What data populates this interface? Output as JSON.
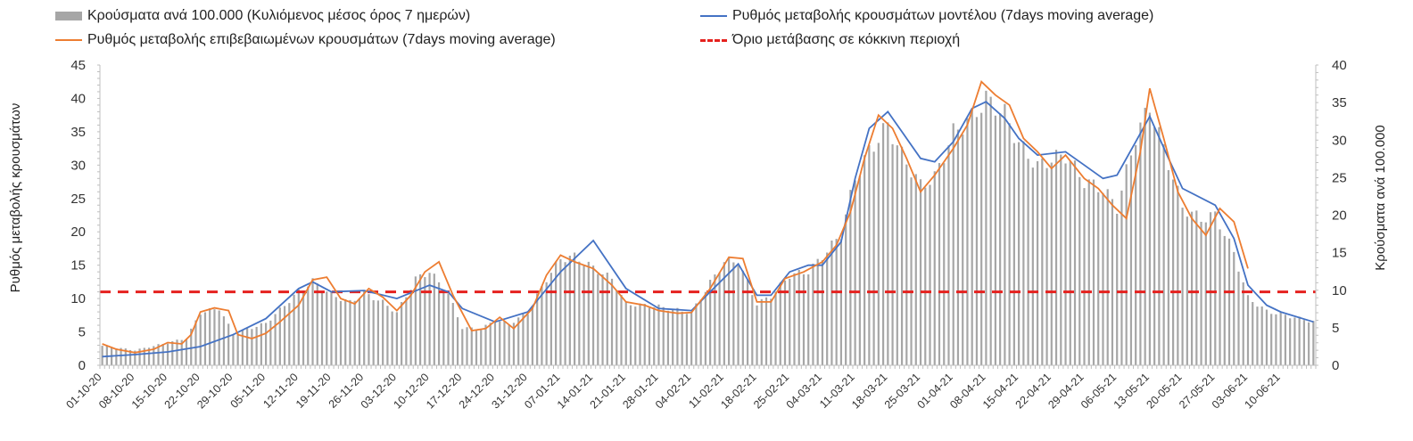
{
  "chart_data": {
    "type": "bar+line",
    "title": "",
    "ylabel_left": "Ρυθμός μεταβολής κρουσμάτων",
    "ylabel_right": "Κρούσματα ανά 100.000",
    "ylim_left": [
      0,
      45
    ],
    "ylim_right": [
      0,
      40
    ],
    "yticks_left": [
      0,
      5,
      10,
      15,
      20,
      25,
      30,
      35,
      40,
      45
    ],
    "yticks_right": [
      0,
      5,
      10,
      15,
      20,
      25,
      30,
      35,
      40
    ],
    "x_start": "2020-10-01",
    "x_end": "2021-06-17",
    "x_tick_labels": [
      "01-10-20",
      "08-10-20",
      "15-10-20",
      "22-10-20",
      "29-10-20",
      "05-11-20",
      "12-11-20",
      "19-11-20",
      "26-11-20",
      "03-12-20",
      "10-12-20",
      "17-12-20",
      "24-12-20",
      "31-12-20",
      "07-01-21",
      "14-01-21",
      "21-01-21",
      "28-01-21",
      "04-02-21",
      "11-02-21",
      "18-02-21",
      "25-02-21",
      "04-03-21",
      "11-03-21",
      "18-03-21",
      "25-03-21",
      "01-04-21",
      "08-04-21",
      "15-04-21",
      "22-04-21",
      "29-04-21",
      "06-05-21",
      "13-05-21",
      "20-05-21",
      "27-05-21",
      "03-06-21",
      "10-06-21"
    ],
    "threshold": 11,
    "series": [
      {
        "name": "Κρούσματα ανά 100.000 (Κυλιόμενος μέσος όρος 7 ημερών)",
        "kind": "bar",
        "axis": "right",
        "color": "#a6a6a6",
        "points": [
          [
            "2020-10-01",
            2.6
          ],
          [
            "2020-10-08",
            2.0
          ],
          [
            "2020-10-15",
            3.0
          ],
          [
            "2020-10-19",
            3.6
          ],
          [
            "2020-10-22",
            7.0
          ],
          [
            "2020-10-26",
            7.6
          ],
          [
            "2020-10-29",
            4.2
          ],
          [
            "2020-11-05",
            5.6
          ],
          [
            "2020-11-12",
            9.8
          ],
          [
            "2020-11-15",
            11.2
          ],
          [
            "2020-11-19",
            9.4
          ],
          [
            "2020-11-23",
            8.4
          ],
          [
            "2020-11-26",
            9.6
          ],
          [
            "2020-11-30",
            8.4
          ],
          [
            "2020-12-03",
            7.0
          ],
          [
            "2020-12-07",
            11.5
          ],
          [
            "2020-12-10",
            12.5
          ],
          [
            "2020-12-14",
            9.5
          ],
          [
            "2020-12-17",
            5.0
          ],
          [
            "2020-12-21",
            4.8
          ],
          [
            "2020-12-24",
            6.0
          ],
          [
            "2020-12-27",
            5.5
          ],
          [
            "2020-12-31",
            7.0
          ],
          [
            "2021-01-04",
            11.5
          ],
          [
            "2021-01-07",
            14.2
          ],
          [
            "2021-01-10",
            14.5
          ],
          [
            "2021-01-14",
            13.0
          ],
          [
            "2021-01-18",
            11.5
          ],
          [
            "2021-01-21",
            8.2
          ],
          [
            "2021-01-28",
            7.8
          ],
          [
            "2021-02-04",
            7.0
          ],
          [
            "2021-02-08",
            11.0
          ],
          [
            "2021-02-11",
            13.8
          ],
          [
            "2021-02-14",
            13.8
          ],
          [
            "2021-02-18",
            8.2
          ],
          [
            "2021-02-21",
            9.2
          ],
          [
            "2021-02-25",
            12.0
          ],
          [
            "2021-03-01",
            12.5
          ],
          [
            "2021-03-04",
            14.5
          ],
          [
            "2021-03-08",
            17.5
          ],
          [
            "2021-03-11",
            25.0
          ],
          [
            "2021-03-14",
            28.5
          ],
          [
            "2021-03-18",
            32.0
          ],
          [
            "2021-03-21",
            28.0
          ],
          [
            "2021-03-25",
            24.0
          ],
          [
            "2021-03-28",
            25.0
          ],
          [
            "2021-04-01",
            31.0
          ],
          [
            "2021-04-05",
            33.0
          ],
          [
            "2021-04-08",
            35.5
          ],
          [
            "2021-04-12",
            33.5
          ],
          [
            "2021-04-15",
            29.5
          ],
          [
            "2021-04-19",
            26.5
          ],
          [
            "2021-04-22",
            27.5
          ],
          [
            "2021-04-25",
            28.0
          ],
          [
            "2021-04-29",
            24.5
          ],
          [
            "2021-05-03",
            23.5
          ],
          [
            "2021-05-06",
            21.0
          ],
          [
            "2021-05-10",
            30.5
          ],
          [
            "2021-05-13",
            34.5
          ],
          [
            "2021-05-17",
            27.0
          ],
          [
            "2021-05-20",
            21.0
          ],
          [
            "2021-05-24",
            19.5
          ],
          [
            "2021-05-27",
            20.0
          ],
          [
            "2021-05-31",
            15.0
          ],
          [
            "2021-06-03",
            9.0
          ],
          [
            "2021-06-07",
            7.2
          ],
          [
            "2021-06-10",
            6.8
          ],
          [
            "2021-06-17",
            5.8
          ]
        ]
      },
      {
        "name": "Ρυθμός μεταβολής κρουσμάτων μοντέλου (7days moving average)",
        "kind": "line",
        "axis": "left",
        "color": "#4472c4",
        "points": [
          [
            "2020-10-01",
            1.3
          ],
          [
            "2020-10-08",
            1.6
          ],
          [
            "2020-10-15",
            2.0
          ],
          [
            "2020-10-22",
            2.8
          ],
          [
            "2020-10-29",
            4.6
          ],
          [
            "2020-11-05",
            7.0
          ],
          [
            "2020-11-12",
            11.5
          ],
          [
            "2020-11-15",
            12.5
          ],
          [
            "2020-11-19",
            11.0
          ],
          [
            "2020-11-26",
            11.2
          ],
          [
            "2020-12-03",
            10.0
          ],
          [
            "2020-12-10",
            12.0
          ],
          [
            "2020-12-14",
            11.0
          ],
          [
            "2020-12-17",
            8.5
          ],
          [
            "2020-12-24",
            6.5
          ],
          [
            "2020-12-31",
            8.0
          ],
          [
            "2021-01-07",
            14.0
          ],
          [
            "2021-01-14",
            18.7
          ],
          [
            "2021-01-21",
            11.5
          ],
          [
            "2021-01-28",
            8.5
          ],
          [
            "2021-02-04",
            8.2
          ],
          [
            "2021-02-08",
            11.0
          ],
          [
            "2021-02-14",
            15.2
          ],
          [
            "2021-02-18",
            10.5
          ],
          [
            "2021-02-21",
            10.5
          ],
          [
            "2021-02-25",
            14.0
          ],
          [
            "2021-03-01",
            15.0
          ],
          [
            "2021-03-04",
            15.0
          ],
          [
            "2021-03-08",
            18.5
          ],
          [
            "2021-03-11",
            28.0
          ],
          [
            "2021-03-14",
            35.5
          ],
          [
            "2021-03-18",
            38.0
          ],
          [
            "2021-03-21",
            35.0
          ],
          [
            "2021-03-25",
            31.0
          ],
          [
            "2021-03-28",
            30.5
          ],
          [
            "2021-04-01",
            33.5
          ],
          [
            "2021-04-05",
            38.5
          ],
          [
            "2021-04-08",
            39.5
          ],
          [
            "2021-04-12",
            37.0
          ],
          [
            "2021-04-15",
            34.0
          ],
          [
            "2021-04-19",
            31.5
          ],
          [
            "2021-04-25",
            32.0
          ],
          [
            "2021-04-29",
            30.0
          ],
          [
            "2021-05-03",
            28.0
          ],
          [
            "2021-05-06",
            28.5
          ],
          [
            "2021-05-10",
            33.5
          ],
          [
            "2021-05-13",
            37.3
          ],
          [
            "2021-05-17",
            31.0
          ],
          [
            "2021-05-20",
            26.5
          ],
          [
            "2021-05-27",
            24.0
          ],
          [
            "2021-05-31",
            19.0
          ],
          [
            "2021-06-03",
            12.0
          ],
          [
            "2021-06-07",
            9.0
          ],
          [
            "2021-06-10",
            8.0
          ],
          [
            "2021-06-17",
            6.5
          ]
        ]
      },
      {
        "name": "Ρυθμός μεταβολής επιβεβαιωμένων κρουσμάτων (7days moving average)",
        "kind": "line",
        "axis": "left",
        "color": "#ed7d31",
        "points": [
          [
            "2020-10-01",
            3.2
          ],
          [
            "2020-10-04",
            2.4
          ],
          [
            "2020-10-08",
            1.9
          ],
          [
            "2020-10-12",
            2.4
          ],
          [
            "2020-10-15",
            3.4
          ],
          [
            "2020-10-18",
            3.2
          ],
          [
            "2020-10-20",
            4.6
          ],
          [
            "2020-10-22",
            8.0
          ],
          [
            "2020-10-25",
            8.6
          ],
          [
            "2020-10-28",
            8.2
          ],
          [
            "2020-10-30",
            4.6
          ],
          [
            "2020-11-02",
            4.0
          ],
          [
            "2020-11-05",
            4.8
          ],
          [
            "2020-11-08",
            6.5
          ],
          [
            "2020-11-12",
            9.0
          ],
          [
            "2020-11-15",
            12.8
          ],
          [
            "2020-11-18",
            13.2
          ],
          [
            "2020-11-21",
            10.0
          ],
          [
            "2020-11-24",
            9.2
          ],
          [
            "2020-11-27",
            11.5
          ],
          [
            "2020-11-30",
            10.2
          ],
          [
            "2020-12-03",
            8.2
          ],
          [
            "2020-12-06",
            10.5
          ],
          [
            "2020-12-09",
            14.0
          ],
          [
            "2020-12-12",
            15.5
          ],
          [
            "2020-12-15",
            10.5
          ],
          [
            "2020-12-19",
            5.2
          ],
          [
            "2020-12-22",
            5.5
          ],
          [
            "2020-12-25",
            7.2
          ],
          [
            "2020-12-28",
            5.5
          ],
          [
            "2021-01-01",
            8.5
          ],
          [
            "2021-01-04",
            13.5
          ],
          [
            "2021-01-07",
            16.5
          ],
          [
            "2021-01-10",
            15.5
          ],
          [
            "2021-01-14",
            14.5
          ],
          [
            "2021-01-18",
            12.0
          ],
          [
            "2021-01-21",
            9.5
          ],
          [
            "2021-01-25",
            9.0
          ],
          [
            "2021-01-28",
            8.2
          ],
          [
            "2021-02-01",
            7.8
          ],
          [
            "2021-02-04",
            7.9
          ],
          [
            "2021-02-08",
            11.5
          ],
          [
            "2021-02-12",
            16.2
          ],
          [
            "2021-02-15",
            16.0
          ],
          [
            "2021-02-18",
            9.5
          ],
          [
            "2021-02-21",
            9.5
          ],
          [
            "2021-02-24",
            13.0
          ],
          [
            "2021-02-28",
            14.0
          ],
          [
            "2021-03-04",
            15.5
          ],
          [
            "2021-03-07",
            18.0
          ],
          [
            "2021-03-10",
            23.0
          ],
          [
            "2021-03-13",
            31.0
          ],
          [
            "2021-03-16",
            37.5
          ],
          [
            "2021-03-19",
            35.5
          ],
          [
            "2021-03-22",
            31.0
          ],
          [
            "2021-03-25",
            26.0
          ],
          [
            "2021-03-28",
            28.5
          ],
          [
            "2021-04-01",
            32.5
          ],
          [
            "2021-04-04",
            36.0
          ],
          [
            "2021-04-07",
            42.5
          ],
          [
            "2021-04-10",
            40.5
          ],
          [
            "2021-04-13",
            39.0
          ],
          [
            "2021-04-16",
            34.0
          ],
          [
            "2021-04-19",
            32.0
          ],
          [
            "2021-04-22",
            29.5
          ],
          [
            "2021-04-25",
            31.5
          ],
          [
            "2021-04-29",
            28.0
          ],
          [
            "2021-05-02",
            26.5
          ],
          [
            "2021-05-05",
            24.0
          ],
          [
            "2021-05-08",
            22.0
          ],
          [
            "2021-05-11",
            32.0
          ],
          [
            "2021-05-13",
            41.5
          ],
          [
            "2021-05-16",
            34.0
          ],
          [
            "2021-05-19",
            26.0
          ],
          [
            "2021-05-22",
            22.0
          ],
          [
            "2021-05-25",
            19.5
          ],
          [
            "2021-05-28",
            23.5
          ],
          [
            "2021-05-31",
            21.5
          ],
          [
            "2021-06-03",
            14.5
          ]
        ]
      }
    ],
    "threshold_label": "Όριο μετάβασης σε κόκκινη περιοχή",
    "threshold_color": "#e5211e",
    "legend_position": "top"
  }
}
